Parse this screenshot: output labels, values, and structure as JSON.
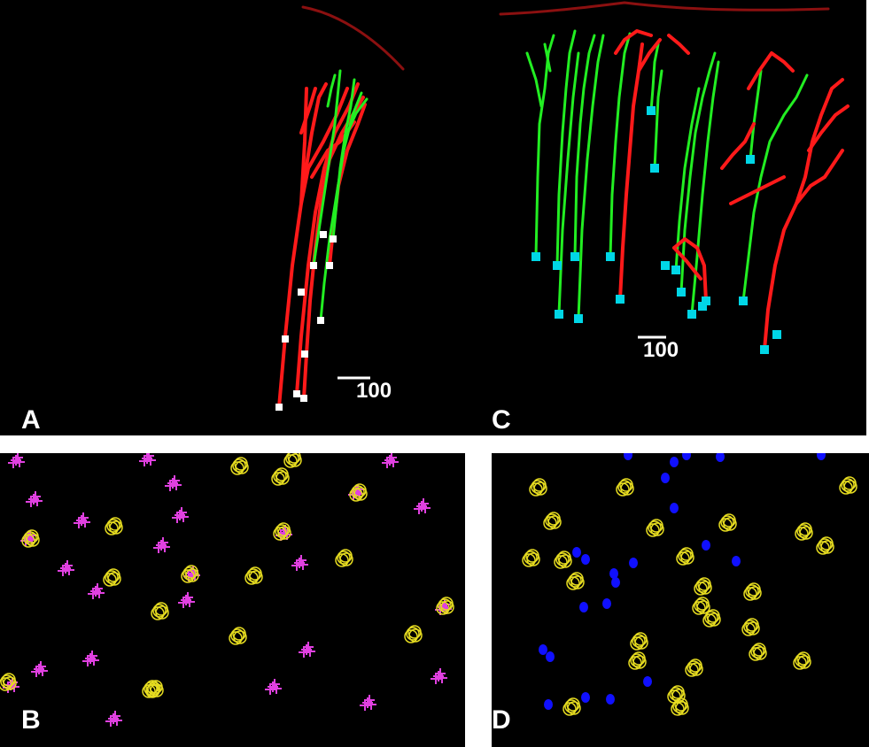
{
  "figure": {
    "panels": [
      {
        "id": "A",
        "label": "A",
        "scale_bar_label": "100"
      },
      {
        "id": "B",
        "label": "B"
      },
      {
        "id": "C",
        "label": "C",
        "scale_bar_label": "100"
      },
      {
        "id": "D",
        "label": "D"
      }
    ],
    "colors": {
      "background": "#000000",
      "surface_line": "#8b1010",
      "neuron_red": "#ff1a1a",
      "neuron_green": "#22ee22",
      "soma_white": "#ffffff",
      "soma_cyan": "#00d6e6",
      "marker_magenta": "#e040e0",
      "marker_yellow": "#e6dc20",
      "marker_blue": "#1010ff"
    },
    "marker_types": [
      "plus-cluster",
      "circle-cluster",
      "filled-dot"
    ]
  }
}
